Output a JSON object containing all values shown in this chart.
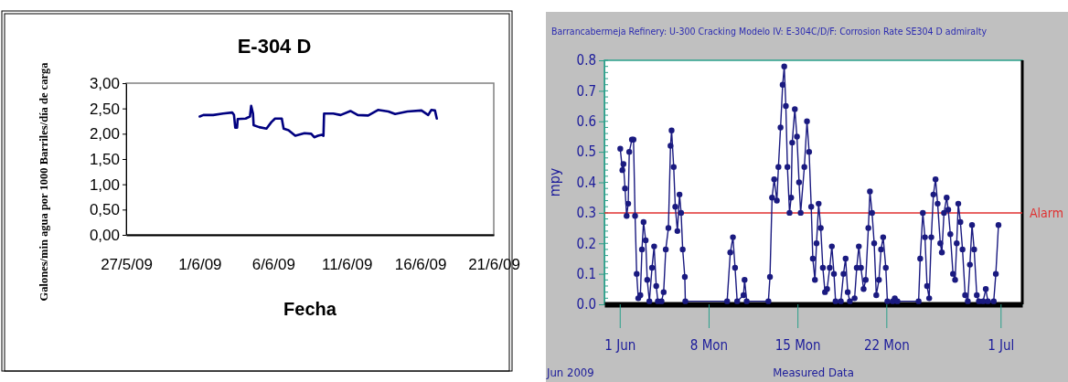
{
  "chart_data": [
    {
      "type": "line",
      "title": "E-304 D",
      "xlabel": "Fecha",
      "ylabel": "Galones/min agua por 1000 Barriles/día de carga",
      "xlim": [
        "2009-05-27",
        "2009-06-21"
      ],
      "xticks": [
        {
          "value": "2009-05-27",
          "label": "27/5/09"
        },
        {
          "value": "2009-06-01",
          "label": "1/6/09"
        },
        {
          "value": "2009-06-06",
          "label": "6/6/09"
        },
        {
          "value": "2009-06-11",
          "label": "11/6/09"
        },
        {
          "value": "2009-06-16",
          "label": "16/6/09"
        },
        {
          "value": "2009-06-21",
          "label": "21/6/09"
        }
      ],
      "ylim": [
        0,
        3
      ],
      "yticks": [
        {
          "value": 0,
          "label": "0,00"
        },
        {
          "value": 0.5,
          "label": "0,50"
        },
        {
          "value": 1,
          "label": "1,00"
        },
        {
          "value": 1.5,
          "label": "1,50"
        },
        {
          "value": 2,
          "label": "2,00"
        },
        {
          "value": 2.5,
          "label": "2,50"
        },
        {
          "value": 3,
          "label": "3,00"
        }
      ],
      "grid": false,
      "series": [
        {
          "color": "#000080",
          "x": [
            "2009-06-01T00:00",
            "2009-06-01T06:00",
            "2009-06-01T22:00",
            "2009-06-02T14:00",
            "2009-06-03T05:00",
            "2009-06-03T08:00",
            "2009-06-03T10:00",
            "2009-06-03T13:00",
            "2009-06-03T14:00",
            "2009-06-04T03:00",
            "2009-06-04T10:00",
            "2009-06-04T12:00",
            "2009-06-04T15:00",
            "2009-06-04T16:00",
            "2009-06-05T01:00",
            "2009-06-05T13:00",
            "2009-06-05T21:00",
            "2009-06-06T03:00",
            "2009-06-06T14:00",
            "2009-06-06T17:00",
            "2009-06-07T01:00",
            "2009-06-07T12:00",
            "2009-06-08T03:00",
            "2009-06-08T14:00",
            "2009-06-08T19:00",
            "2009-06-09T01:00",
            "2009-06-09T07:00",
            "2009-06-09T10:00",
            "2009-06-09T11:00",
            "2009-06-10T02:00",
            "2009-06-10T14:00",
            "2009-06-11T06:00",
            "2009-06-11T18:00",
            "2009-06-12T11:00",
            "2009-06-13T03:00",
            "2009-06-13T20:00",
            "2009-06-14T07:00",
            "2009-06-15T03:00",
            "2009-06-16T02:00",
            "2009-06-16T13:00",
            "2009-06-16T18:00",
            "2009-06-17T00:00",
            "2009-06-17T03:00"
          ],
          "values": [
            2.34,
            2.37,
            2.37,
            2.4,
            2.42,
            2.37,
            2.12,
            2.12,
            2.29,
            2.3,
            2.34,
            2.55,
            2.4,
            2.17,
            2.13,
            2.1,
            2.23,
            2.3,
            2.3,
            2.1,
            2.07,
            1.96,
            2.01,
            2.0,
            1.93,
            1.96,
            1.98,
            1.96,
            2.4,
            2.4,
            2.37,
            2.45,
            2.37,
            2.36,
            2.47,
            2.44,
            2.39,
            2.44,
            2.46,
            2.37,
            2.47,
            2.46,
            2.3
          ]
        }
      ]
    },
    {
      "type": "line",
      "title": "Barrancabermeja Refinery: U-300 Cracking Modelo IV: E-304C/D/F: Corrosion Rate SE304 D admiralty",
      "xlabel": "Measured Data",
      "ylabel": "mpy",
      "annotations": [
        "Jun 2009"
      ],
      "xlim": [
        "2009-05-30T19:00",
        "2009-07-02T17:00"
      ],
      "xticks": [
        {
          "value": "2009-06-01",
          "label": "1 Jun"
        },
        {
          "value": "2009-06-08",
          "label": "8 Mon"
        },
        {
          "value": "2009-06-15",
          "label": "15 Mon"
        },
        {
          "value": "2009-06-22",
          "label": "22 Mon"
        },
        {
          "value": "2009-07-01",
          "label": "1 Jul"
        }
      ],
      "ylim": [
        0,
        0.8
      ],
      "yticks": [
        {
          "value": 0,
          "label": "0.0"
        },
        {
          "value": 0.1,
          "label": "0.1"
        },
        {
          "value": 0.2,
          "label": "0.2"
        },
        {
          "value": 0.3,
          "label": "0.3"
        },
        {
          "value": 0.4,
          "label": "0.4"
        },
        {
          "value": 0.5,
          "label": "0.5"
        },
        {
          "value": 0.6,
          "label": "0.6"
        },
        {
          "value": 0.7,
          "label": "0.7"
        },
        {
          "value": 0.8,
          "label": "0.8"
        }
      ],
      "grid": false,
      "marker": "circle",
      "ref_lines": [
        {
          "axis": "y",
          "value": 0.3,
          "label": "Alarm",
          "color": "#e03030"
        }
      ],
      "series": [
        {
          "color": "#1a1a80",
          "x": [
            "2009-06-01T01:00",
            "2009-06-01T05:00",
            "2009-06-01T07:00",
            "2009-06-01T10:00",
            "2009-06-01T13:00",
            "2009-06-01T16:00",
            "2009-06-01T18:00",
            "2009-06-01T23:00",
            "2009-06-02T02:00",
            "2009-06-02T05:00",
            "2009-06-02T08:00",
            "2009-06-02T11:00",
            "2009-06-02T15:00",
            "2009-06-02T18:00",
            "2009-06-02T21:00",
            "2009-06-03T01:00",
            "2009-06-03T04:00",
            "2009-06-03T08:00",
            "2009-06-03T13:00",
            "2009-06-03T17:00",
            "2009-06-03T21:00",
            "2009-06-04T00:00",
            "2009-06-04T07:00",
            "2009-06-04T11:00",
            "2009-06-04T15:00",
            "2009-06-04T20:00",
            "2009-06-05T00:00",
            "2009-06-05T02:00",
            "2009-06-05T06:00",
            "2009-06-05T09:00",
            "2009-06-05T13:00",
            "2009-06-05T17:00",
            "2009-06-05T20:00",
            "2009-06-05T23:00",
            "2009-06-06T03:00",
            "2009-06-06T04:00",
            "2009-06-09T11:00",
            "2009-06-09T17:00",
            "2009-06-09T22:00",
            "2009-06-10T02:00",
            "2009-06-10T06:00",
            "2009-06-10T18:00",
            "2009-06-10T20:00",
            "2009-06-11T00:00",
            "2009-06-12T17:00",
            "2009-06-12T20:00",
            "2009-06-13T00:00",
            "2009-06-13T04:00",
            "2009-06-13T09:00",
            "2009-06-13T12:00",
            "2009-06-13T16:00",
            "2009-06-13T20:00",
            "2009-06-13T23:00",
            "2009-06-14T02:00",
            "2009-06-14T05:00",
            "2009-06-14T09:00",
            "2009-06-14T12:00",
            "2009-06-14T14:00",
            "2009-06-14T19:00",
            "2009-06-14T23:00",
            "2009-06-15T03:00",
            "2009-06-15T06:00",
            "2009-06-15T13:00",
            "2009-06-15T18:00",
            "2009-06-15T22:00",
            "2009-06-16T02:00",
            "2009-06-16T05:00",
            "2009-06-16T09:00",
            "2009-06-16T12:00",
            "2009-06-16T16:00",
            "2009-06-16T20:00",
            "2009-06-17T00:00",
            "2009-06-17T04:00",
            "2009-06-17T08:00",
            "2009-06-17T13:00",
            "2009-06-17T17:00",
            "2009-06-17T21:00",
            "2009-06-18T00:00",
            "2009-06-18T10:00",
            "2009-06-18T15:00",
            "2009-06-18T19:00",
            "2009-06-18T23:00",
            "2009-06-19T03:00",
            "2009-06-19T12:00",
            "2009-06-19T16:00",
            "2009-06-19T20:00",
            "2009-06-20T00:00",
            "2009-06-20T05:00",
            "2009-06-20T09:00",
            "2009-06-20T14:00",
            "2009-06-20T17:00",
            "2009-06-20T21:00",
            "2009-06-21T01:00",
            "2009-06-21T05:00",
            "2009-06-21T10:00",
            "2009-06-21T14:00",
            "2009-06-21T18:00",
            "2009-06-21T23:00",
            "2009-06-22T02:00",
            "2009-06-22T12:00",
            "2009-06-22T16:00",
            "2009-06-22T21:00",
            "2009-06-24T13:00",
            "2009-06-24T16:00",
            "2009-06-24T21:00",
            "2009-06-25T01:00",
            "2009-06-25T05:00",
            "2009-06-25T09:00",
            "2009-06-25T13:00",
            "2009-06-25T17:00",
            "2009-06-25T21:00",
            "2009-06-26T01:00",
            "2009-06-26T06:00",
            "2009-06-26T09:00",
            "2009-06-26T13:00",
            "2009-06-26T18:00",
            "2009-06-26T21:00",
            "2009-06-27T01:00",
            "2009-06-27T06:00",
            "2009-06-27T10:00",
            "2009-06-27T13:00",
            "2009-06-27T16:00",
            "2009-06-27T20:00",
            "2009-06-28T00:00",
            "2009-06-28T05:00",
            "2009-06-28T10:00",
            "2009-06-28T14:00",
            "2009-06-28T18:00",
            "2009-06-28T22:00",
            "2009-06-29T03:00",
            "2009-06-29T07:00",
            "2009-06-29T15:00",
            "2009-06-29T20:00",
            "2009-06-30T00:00",
            "2009-06-30T11:00",
            "2009-06-30T15:00",
            "2009-06-30T20:00"
          ],
          "values": [
            0.51,
            0.44,
            0.46,
            0.38,
            0.29,
            0.33,
            0.5,
            0.54,
            0.54,
            0.29,
            0.1,
            0.02,
            0.03,
            0.18,
            0.27,
            0.21,
            0.08,
            0.01,
            0.12,
            0.19,
            0.06,
            0.01,
            0.01,
            0.04,
            0.18,
            0.25,
            0.52,
            0.57,
            0.45,
            0.32,
            0.24,
            0.36,
            0.3,
            0.18,
            0.09,
            0.01,
            0.01,
            0.17,
            0.22,
            0.12,
            0.01,
            0.03,
            0.08,
            0.01,
            0.01,
            0.09,
            0.35,
            0.41,
            0.34,
            0.45,
            0.58,
            0.72,
            0.78,
            0.65,
            0.45,
            0.3,
            0.35,
            0.53,
            0.64,
            0.55,
            0.4,
            0.3,
            0.45,
            0.6,
            0.5,
            0.32,
            0.15,
            0.08,
            0.2,
            0.33,
            0.25,
            0.12,
            0.04,
            0.05,
            0.12,
            0.19,
            0.1,
            0.01,
            0.01,
            0.1,
            0.15,
            0.04,
            0.01,
            0.02,
            0.12,
            0.19,
            0.12,
            0.05,
            0.08,
            0.25,
            0.37,
            0.3,
            0.2,
            0.03,
            0.08,
            0.18,
            0.22,
            0.12,
            0.01,
            0.01,
            0.02,
            0.01,
            0.01,
            0.15,
            0.3,
            0.22,
            0.06,
            0.02,
            0.22,
            0.36,
            0.41,
            0.33,
            0.2,
            0.17,
            0.3,
            0.35,
            0.31,
            0.23,
            0.1,
            0.08,
            0.2,
            0.33,
            0.27,
            0.18,
            0.03,
            0.01,
            0.13,
            0.26,
            0.18,
            0.03,
            0.01,
            0.01,
            0.05,
            0.01,
            0.01,
            0.1,
            0.26
          ]
        }
      ]
    }
  ]
}
